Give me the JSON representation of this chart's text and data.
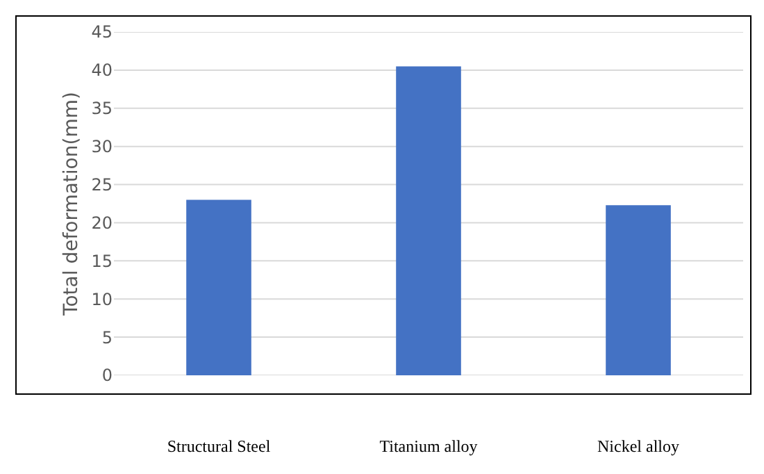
{
  "chart_data": {
    "type": "bar",
    "ylabel": "Total deformation(mm)",
    "categories": [
      "Structural Steel",
      "Titanium alloy",
      "Nickel alloy"
    ],
    "values": [
      23.0,
      40.5,
      22.3
    ],
    "color": "#4472c4",
    "ylim": [
      0,
      45
    ],
    "yticks": [
      0,
      5,
      10,
      15,
      20,
      25,
      30,
      35,
      40,
      45
    ],
    "grid": "y"
  }
}
